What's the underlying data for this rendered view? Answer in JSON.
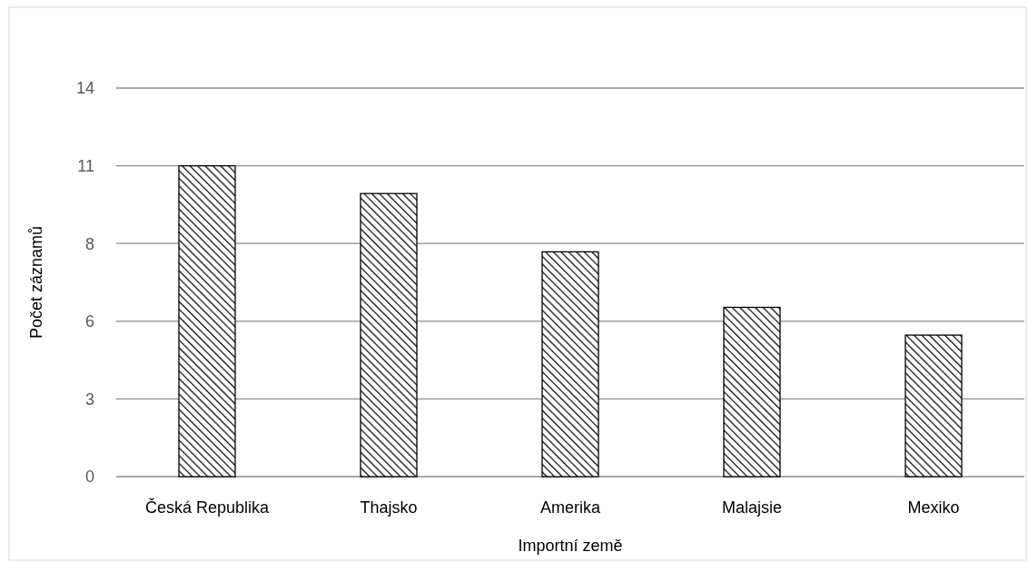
{
  "chart_data": {
    "type": "bar",
    "xlabel": "Importní země",
    "ylabel": "Počet záznamů",
    "categories": [
      "Česká Republika",
      "Thajsko",
      "Amerika",
      "Malajsie",
      "Mexiko"
    ],
    "values": [
      11.2,
      10.2,
      8.1,
      6.1,
      5.1
    ],
    "color": "#000000",
    "ylim": [
      0,
      14
    ],
    "yticks": [
      0,
      {
        "value": 2.8,
        "label": "3"
      },
      {
        "value": 5.6,
        "label": "6"
      },
      {
        "value": 8.4,
        "label": "8"
      },
      {
        "value": 11.2,
        "label": "11"
      },
      14
    ],
    "grid": "y"
  }
}
